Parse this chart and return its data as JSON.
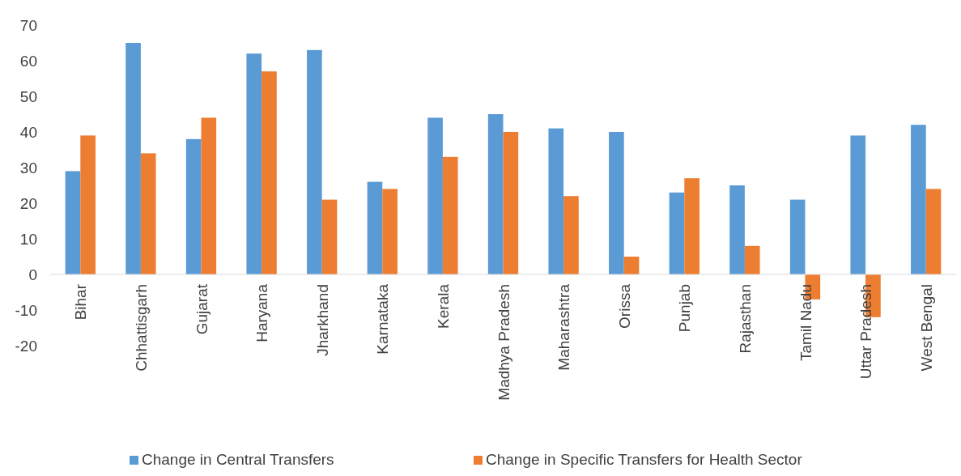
{
  "chart_data": {
    "type": "bar",
    "categories": [
      "Bihar",
      "Chhattisgarh",
      "Gujarat",
      "Haryana",
      "Jharkhand",
      "Karnataka",
      "Kerala",
      "Madhya Pradesh",
      "Maharashtra",
      "Orissa",
      "Punjab",
      "Rajasthan",
      "Tamil Nadu",
      "Uttar Pradesh",
      "West Bengal"
    ],
    "series": [
      {
        "name": "Change in Central Transfers",
        "color": "#5b9bd5",
        "values": [
          29,
          65,
          38,
          62,
          63,
          26,
          44,
          45,
          41,
          40,
          23,
          25,
          21,
          39,
          42
        ]
      },
      {
        "name": "Change in Specific Transfers for Health Sector",
        "color": "#ed7d31",
        "values": [
          39,
          34,
          44,
          57,
          21,
          24,
          33,
          40,
          22,
          5,
          27,
          8,
          -7,
          -12,
          24
        ]
      }
    ],
    "ylim": [
      -20,
      70
    ],
    "yticks": [
      -20,
      -10,
      0,
      10,
      20,
      30,
      40,
      50,
      60,
      70
    ],
    "grid": false,
    "legend": "bottom"
  }
}
